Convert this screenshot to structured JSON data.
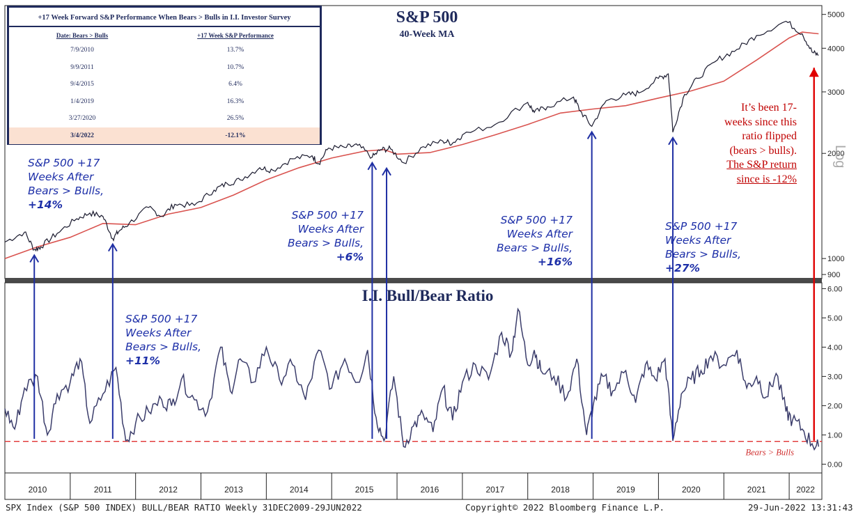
{
  "table": {
    "title": "+17 Week Forward S&P Performance When Bears > Bulls in I.I. Investor Survey",
    "col1_header": "Date: Bears > Bulls",
    "col2_header": "+17 Week S&P Performance",
    "rows": [
      {
        "date": "7/9/2010",
        "perf": "13.7%"
      },
      {
        "date": "9/9/2011",
        "perf": "10.7%"
      },
      {
        "date": "9/4/2015",
        "perf": "6.4%"
      },
      {
        "date": "1/4/2019",
        "perf": "16.3%"
      },
      {
        "date": "3/27/2020",
        "perf": "26.5%"
      },
      {
        "date": "3/4/2022",
        "perf": "-12.1%"
      }
    ]
  },
  "annotations": [
    {
      "lines": [
        "S&P 500 +17",
        "Weeks After",
        "Bears > Bulls,"
      ],
      "pct": "+14%"
    },
    {
      "lines": [
        "S&P 500 +17",
        "Weeks After",
        "Bears > Bulls,"
      ],
      "pct": "+11%"
    },
    {
      "lines": [
        "S&P 500 +17",
        "Weeks After",
        "Bears > Bulls,"
      ],
      "pct": "+6%"
    },
    {
      "lines": [
        "S&P 500 +17",
        "Weeks After",
        "Bears > Bulls,"
      ],
      "pct": "+16%"
    },
    {
      "lines": [
        "S&P 500 +17",
        "Weeks After",
        "Bears > Bulls,"
      ],
      "pct": "+27%"
    }
  ],
  "red_note": {
    "line1": "It’s been 17-",
    "line2": "weeks since this",
    "line3": "ratio flipped",
    "line4": "(bears > bulls).",
    "line5": "The S&P return",
    "line6": "since is -12%"
  },
  "footer": {
    "left": "SPX Index (S&P 500 INDEX) BULL/BEAR RATIO  Weekly 31DEC2009-29JUN2022",
    "center": "Copyright© 2022 Bloomberg Finance L.P.",
    "right": "29-Jun-2022 13:31:43"
  },
  "colors": {
    "price": "#1a1a2e",
    "ma": "#d9534f",
    "ratio": "#3b3d6b",
    "arrow_blue": "#1f2fa3",
    "arrow_red": "#e00000",
    "threshold": "#e03030",
    "divider": "#4a4a4a"
  },
  "chart_data": [
    {
      "type": "line",
      "title": "S&P 500",
      "subtitle": "40-Week MA",
      "yscale": "log",
      "ylabel": "Log",
      "yticks": [
        900,
        1000,
        2000,
        3000,
        4000,
        5000
      ],
      "ylim": [
        880,
        5300
      ],
      "x_labels": [
        "2010",
        "2011",
        "2012",
        "2013",
        "2014",
        "2015",
        "2016",
        "2017",
        "2018",
        "2019",
        "2020",
        "2021",
        "2022"
      ],
      "xlim": [
        2010.0,
        2022.5
      ],
      "series": [
        {
          "name": "S&P 500",
          "x": [
            2010.0,
            2010.3,
            2010.45,
            2010.55,
            2010.8,
            2011.1,
            2011.3,
            2011.5,
            2011.65,
            2011.75,
            2011.9,
            2012.2,
            2012.4,
            2012.6,
            2012.9,
            2013.2,
            2013.4,
            2013.6,
            2013.9,
            2014.1,
            2014.4,
            2014.7,
            2014.8,
            2014.95,
            2015.2,
            2015.4,
            2015.62,
            2015.75,
            2015.9,
            2016.1,
            2016.4,
            2016.7,
            2016.85,
            2017.0,
            2017.5,
            2018.0,
            2018.1,
            2018.3,
            2018.7,
            2018.8,
            2018.98,
            2019.2,
            2019.5,
            2019.7,
            2020.0,
            2020.15,
            2020.22,
            2020.4,
            2020.6,
            2020.9,
            2021.2,
            2021.5,
            2021.95,
            2022.2,
            2022.35,
            2022.45
          ],
          "values": [
            1115,
            1190,
            1060,
            1080,
            1180,
            1300,
            1350,
            1320,
            1140,
            1200,
            1260,
            1400,
            1320,
            1430,
            1420,
            1570,
            1640,
            1680,
            1820,
            1790,
            1930,
            1970,
            1870,
            2070,
            2080,
            2110,
            1950,
            2050,
            2060,
            1880,
            2090,
            2170,
            2140,
            2260,
            2420,
            2800,
            2620,
            2720,
            2900,
            2650,
            2390,
            2830,
            2940,
            2980,
            3280,
            3380,
            2300,
            2950,
            3280,
            3700,
            3970,
            4350,
            4780,
            4400,
            3900,
            3820
          ]
        },
        {
          "name": "40-Week MA",
          "x": [
            2010.0,
            2010.5,
            2011.0,
            2011.5,
            2012.0,
            2012.5,
            2013.0,
            2013.5,
            2014.0,
            2014.5,
            2015.0,
            2015.5,
            2015.8,
            2016.0,
            2016.5,
            2017.0,
            2017.5,
            2018.0,
            2018.5,
            2019.0,
            2019.5,
            2020.0,
            2020.5,
            2021.0,
            2021.5,
            2022.0,
            2022.2,
            2022.45
          ],
          "values": [
            1000,
            1080,
            1150,
            1260,
            1250,
            1340,
            1400,
            1520,
            1680,
            1820,
            1940,
            2030,
            2050,
            1990,
            2010,
            2120,
            2260,
            2420,
            2610,
            2680,
            2740,
            2880,
            3020,
            3220,
            3700,
            4280,
            4450,
            4400
          ]
        }
      ]
    },
    {
      "type": "line",
      "title": "I.I. Bull/Bear Ratio",
      "yticks": [
        0.0,
        1.0,
        2.0,
        3.0,
        4.0,
        5.0,
        6.0
      ],
      "ylim": [
        -0.3,
        6.2
      ],
      "x_labels": [
        "2010",
        "2011",
        "2012",
        "2013",
        "2014",
        "2015",
        "2016",
        "2017",
        "2018",
        "2019",
        "2020",
        "2021",
        "2022"
      ],
      "xlim": [
        2010.0,
        2022.5
      ],
      "threshold": {
        "value": 0.78,
        "label": "Bears > Bulls"
      },
      "series": [
        {
          "name": "I.I. Bull/Bear Ratio",
          "x": [
            2010.0,
            2010.15,
            2010.3,
            2010.5,
            2010.65,
            2010.8,
            2011.0,
            2011.15,
            2011.3,
            2011.5,
            2011.7,
            2011.85,
            2012.0,
            2012.2,
            2012.4,
            2012.55,
            2012.7,
            2012.9,
            2013.1,
            2013.3,
            2013.45,
            2013.6,
            2013.8,
            2014.0,
            2014.2,
            2014.4,
            2014.6,
            2014.8,
            2015.0,
            2015.2,
            2015.4,
            2015.55,
            2015.68,
            2015.8,
            2015.95,
            2016.1,
            2016.25,
            2016.4,
            2016.55,
            2016.7,
            2016.85,
            2017.0,
            2017.2,
            2017.4,
            2017.6,
            2017.75,
            2017.85,
            2018.0,
            2018.1,
            2018.2,
            2018.4,
            2018.6,
            2018.75,
            2018.9,
            2019.0,
            2019.15,
            2019.3,
            2019.5,
            2019.65,
            2019.8,
            2019.95,
            2020.1,
            2020.22,
            2020.35,
            2020.5,
            2020.65,
            2020.8,
            2021.0,
            2021.2,
            2021.35,
            2021.5,
            2021.65,
            2021.8,
            2021.95,
            2022.05,
            2022.2,
            2022.35,
            2022.45
          ],
          "values": [
            1.9,
            1.2,
            2.6,
            3.0,
            1.0,
            2.4,
            2.8,
            3.6,
            1.4,
            2.4,
            3.3,
            0.8,
            1.4,
            1.8,
            2.2,
            2.0,
            2.9,
            2.2,
            1.8,
            4.0,
            2.5,
            3.6,
            2.8,
            4.0,
            2.9,
            3.4,
            2.2,
            3.9,
            2.6,
            3.6,
            2.8,
            3.9,
            1.6,
            0.8,
            3.0,
            0.6,
            1.3,
            1.7,
            1.1,
            2.6,
            1.5,
            2.8,
            3.4,
            2.9,
            4.5,
            3.8,
            5.3,
            3.4,
            3.9,
            3.2,
            3.0,
            2.3,
            3.6,
            1.0,
            2.0,
            3.0,
            2.5,
            3.2,
            2.1,
            3.4,
            2.9,
            3.6,
            0.8,
            2.4,
            2.9,
            3.2,
            3.7,
            3.4,
            3.9,
            2.6,
            3.0,
            2.3,
            3.1,
            1.8,
            1.5,
            1.2,
            0.7,
            0.6
          ]
        }
      ]
    }
  ]
}
